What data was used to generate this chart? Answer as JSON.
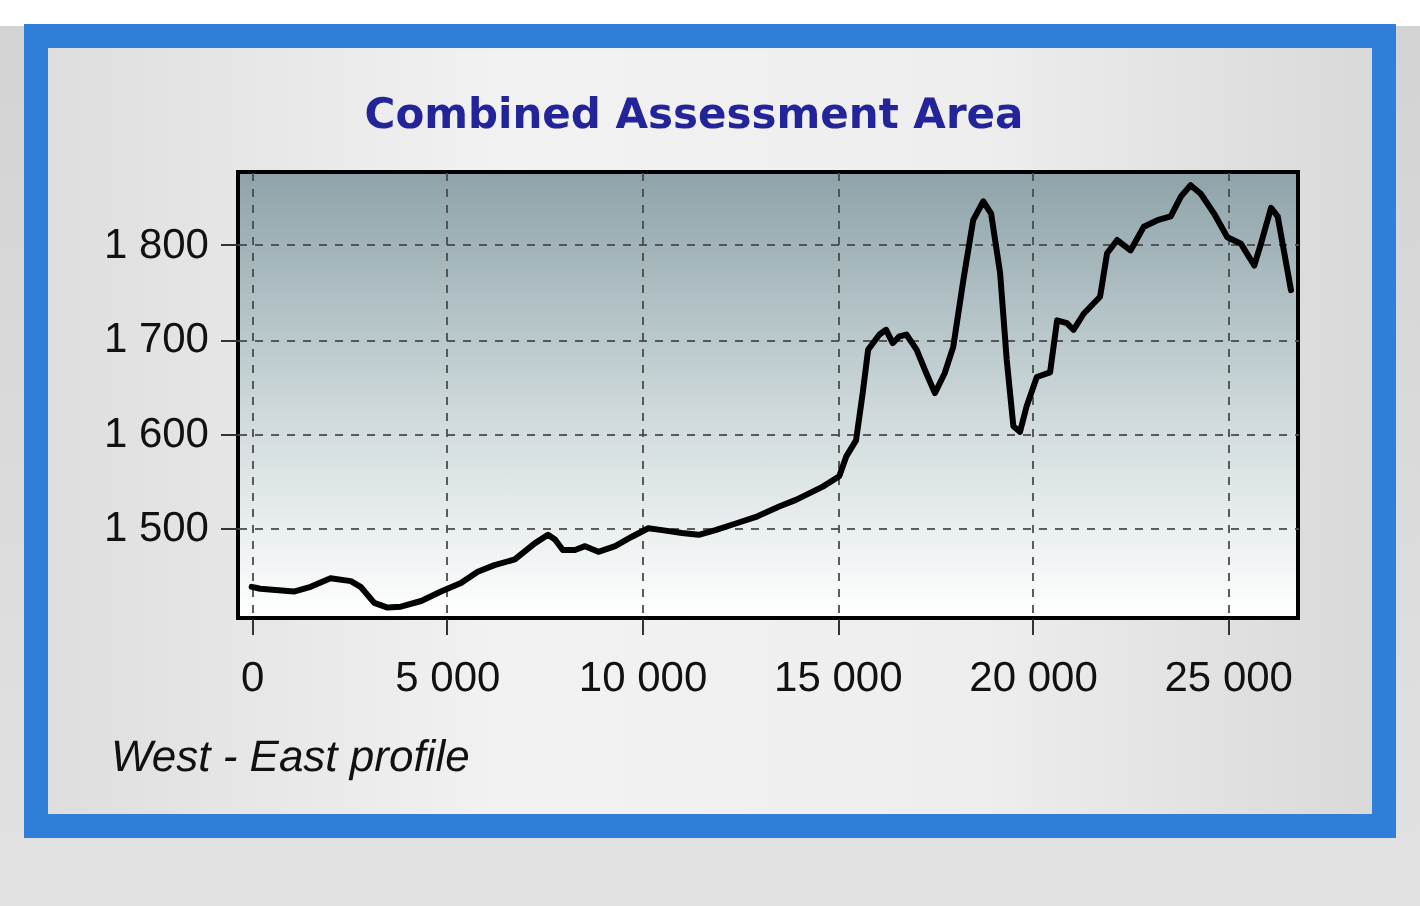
{
  "chart_data": {
    "type": "line",
    "title": "Combined Assessment Area",
    "xlabel": "West - East profile",
    "x": [
      0,
      220,
      1080,
      1510,
      2020,
      2540,
      2790,
      3140,
      3480,
      3820,
      4340,
      4850,
      5360,
      5790,
      6220,
      6740,
      7250,
      7590,
      7770,
      7970,
      8280,
      8540,
      8880,
      9310,
      9740,
      10160,
      10510,
      11020,
      11450,
      11880,
      12400,
      12920,
      13510,
      13940,
      14630,
      15050,
      15230,
      15480,
      15650,
      15790,
      16080,
      16250,
      16420,
      16590,
      16770,
      17030,
      17280,
      17500,
      17750,
      17970,
      18230,
      18480,
      18740,
      18940,
      19170,
      19340,
      19510,
      19680,
      19850,
      20110,
      20450,
      20630,
      20880,
      21050,
      21310,
      21730,
      21910,
      22170,
      22510,
      22850,
      23200,
      23540,
      23800,
      24050,
      24310,
      24650,
      24990,
      25340,
      25680,
      25850,
      26110,
      26280,
      26450,
      26620
    ],
    "series": [
      {
        "color": "#000000",
        "values": [
          1438,
          1436,
          1433,
          1438,
          1447,
          1444,
          1438,
          1421,
          1416,
          1417,
          1423,
          1433,
          1442,
          1454,
          1461,
          1467,
          1484,
          1493,
          1488,
          1477,
          1477,
          1481,
          1475,
          1481,
          1491,
          1500,
          1498,
          1495,
          1493,
          1498,
          1505,
          1512,
          1523,
          1530,
          1544,
          1555,
          1576,
          1593,
          1643,
          1689,
          1705,
          1710,
          1696,
          1703,
          1705,
          1689,
          1664,
          1643,
          1664,
          1692,
          1763,
          1826,
          1846,
          1833,
          1770,
          1678,
          1608,
          1602,
          1629,
          1660,
          1665,
          1720,
          1717,
          1710,
          1727,
          1745,
          1791,
          1805,
          1794,
          1819,
          1826,
          1830,
          1851,
          1863,
          1854,
          1833,
          1808,
          1801,
          1778,
          1801,
          1839,
          1830,
          1791,
          1752
        ]
      }
    ],
    "xlim": [
      -350,
      26800
    ],
    "ylim": [
      1405,
      1877
    ],
    "xticks": [
      0,
      {
        "value": 5000,
        "label": "5 000"
      },
      {
        "value": 10000,
        "label": "10 000"
      },
      {
        "value": 15000,
        "label": "15 000"
      },
      {
        "value": 20000,
        "label": "20 000"
      },
      {
        "value": 25000,
        "label": "25 000"
      }
    ],
    "yticks": [
      {
        "value": 1500,
        "label": "1 500"
      },
      {
        "value": 1600,
        "label": "1 600"
      },
      {
        "value": 1700,
        "label": "1 700"
      },
      {
        "value": 1800,
        "label": "1 800"
      }
    ],
    "grid": true
  }
}
